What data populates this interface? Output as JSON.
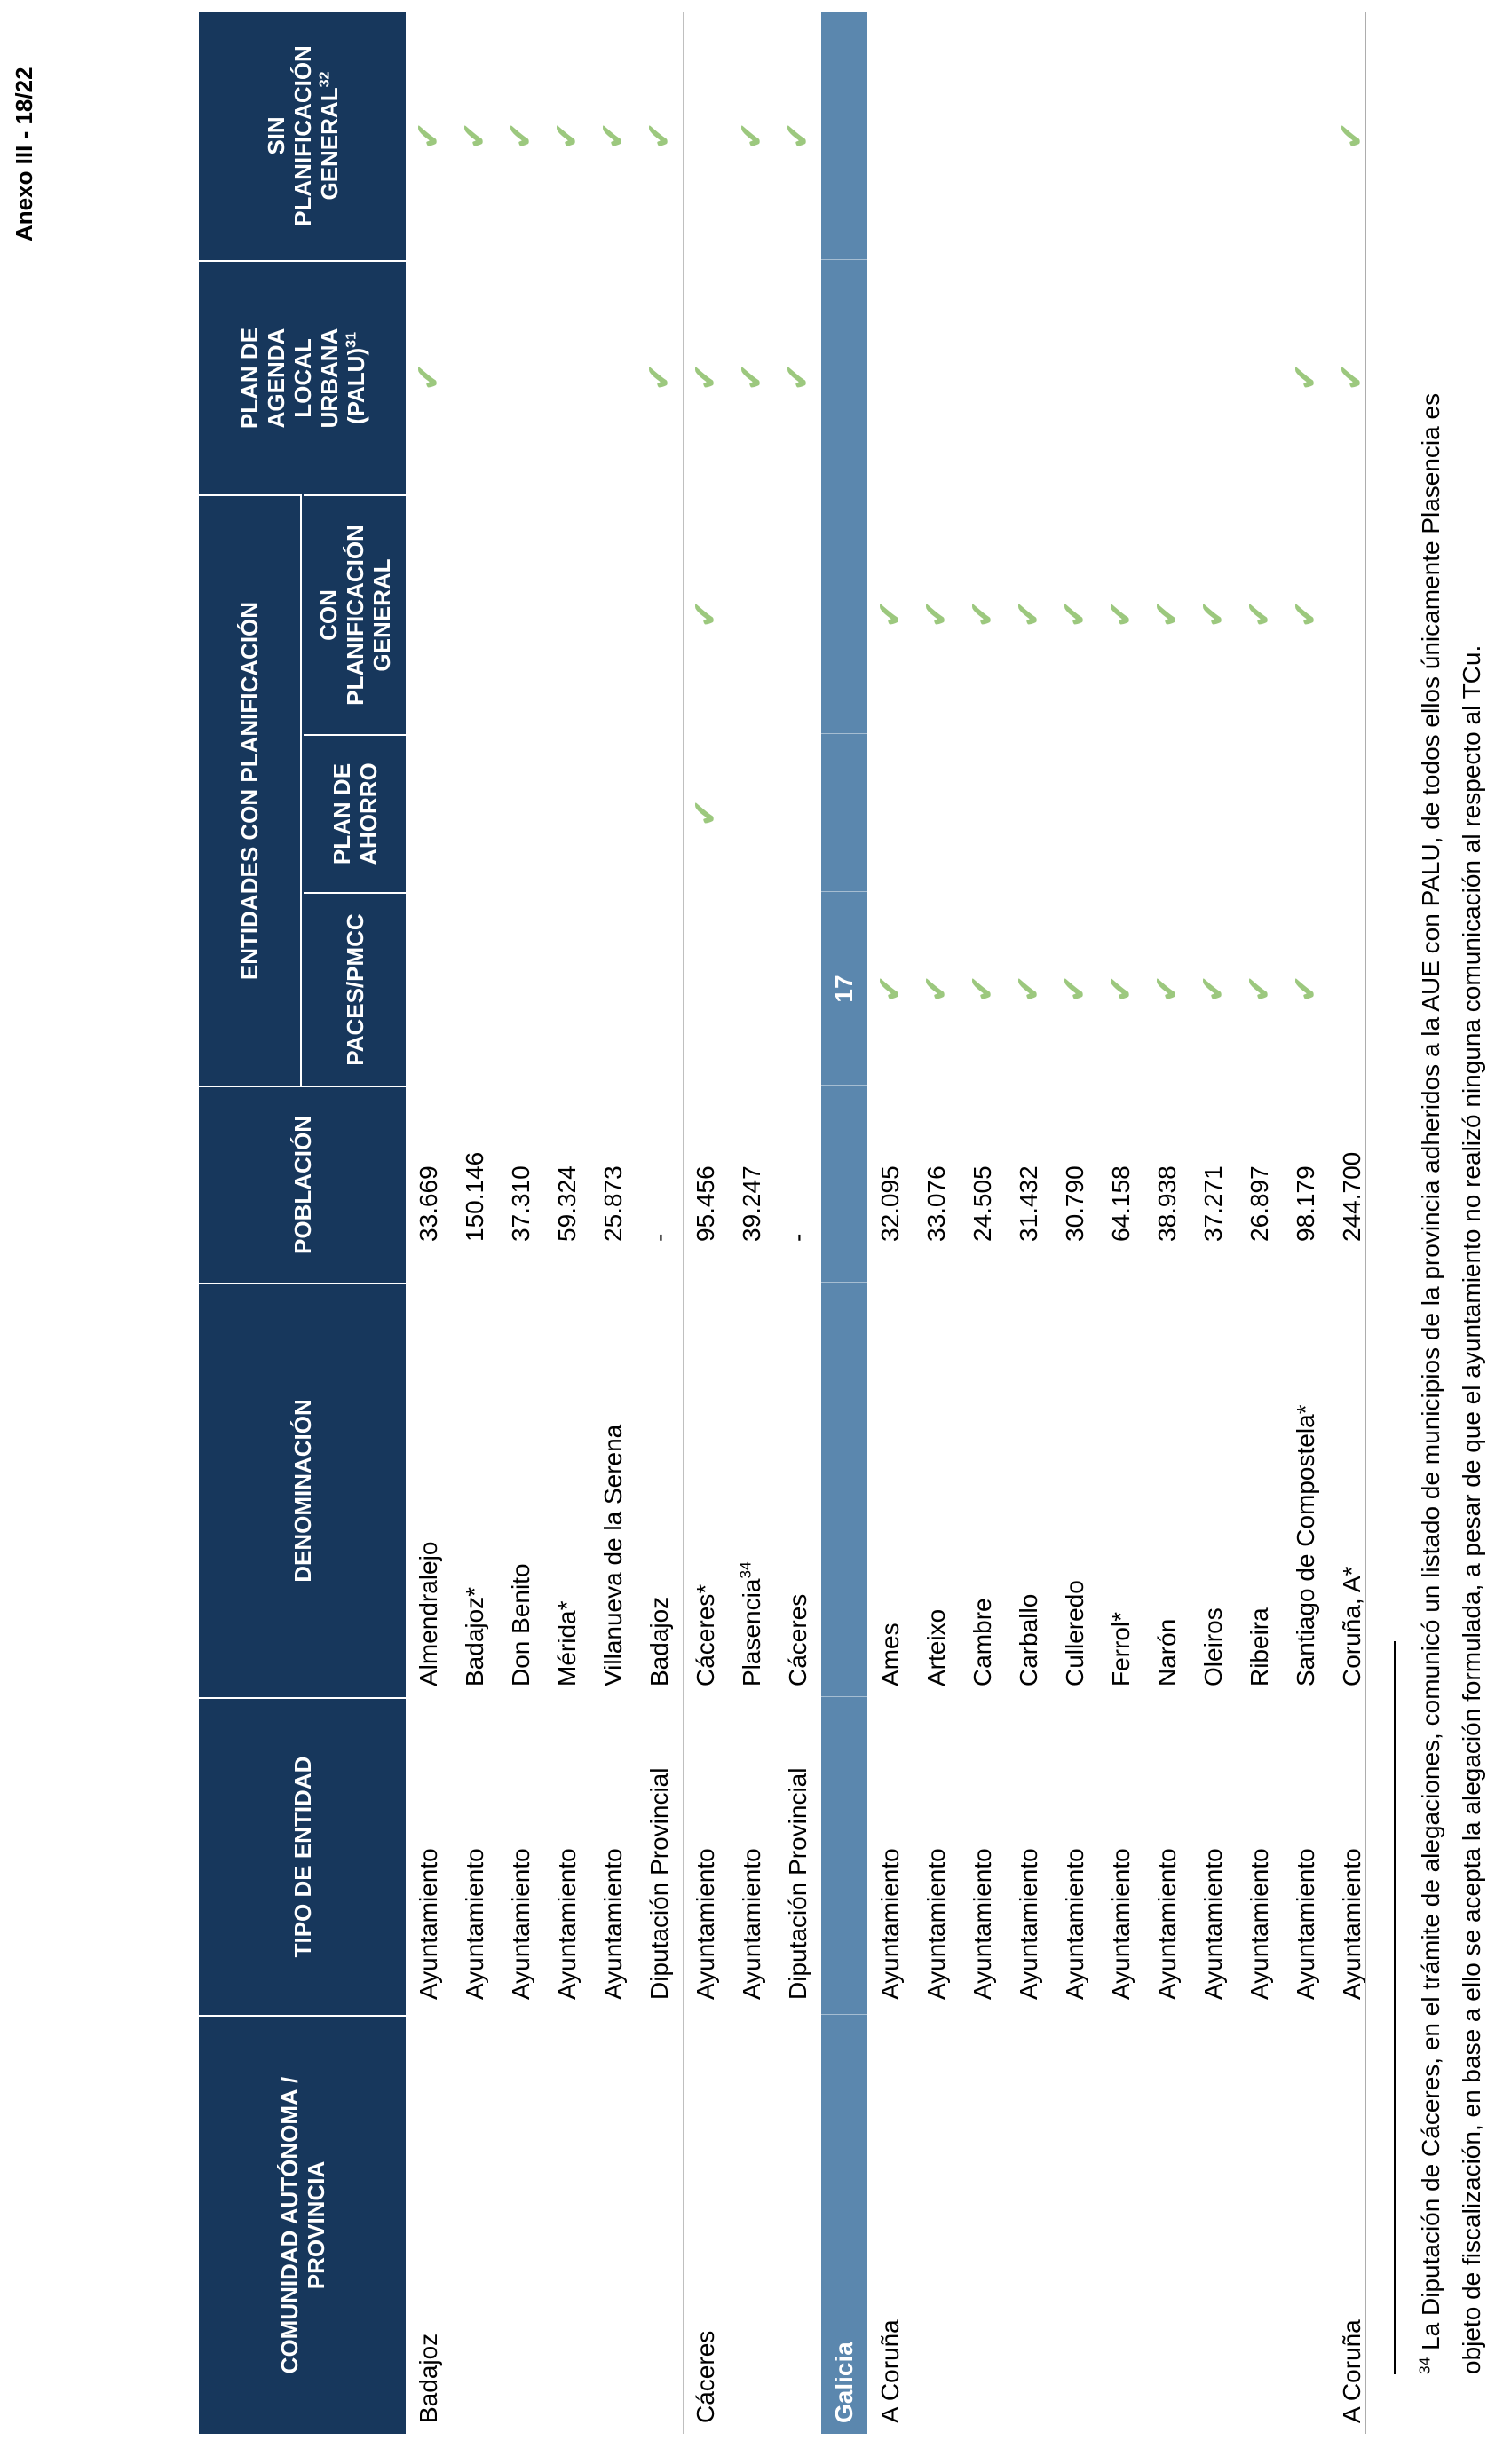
{
  "page": {
    "annex_label": "Anexo III - 18/22"
  },
  "header": {
    "comunidad_line1": "COMUNIDAD AUTÓNOMA /",
    "comunidad_line2": "PROVINCIA",
    "tipo": "TIPO DE ENTIDAD",
    "denominacion": "DENOMINACIÓN",
    "poblacion": "POBLACIÓN",
    "entidades_group": "ENTIDADES CON PLANIFICACIÓN",
    "paces": "PACES/PMCC",
    "ahorro_line1": "PLAN DE",
    "ahorro_line2": "AHORRO",
    "conplan_line1": "CON",
    "conplan_line2": "PLANIFICACIÓN",
    "conplan_line3": "GENERAL",
    "palu_line1": "PLAN DE",
    "palu_line2": "AGENDA",
    "palu_line3": "LOCAL",
    "palu_line4": "URBANA",
    "palu_line5": "(PALU)",
    "palu_sup": "31",
    "sin_line1": "SIN",
    "sin_line2": "PLANIFICACIÓN",
    "sin_line3": "GENERAL",
    "sin_sup": "32"
  },
  "galicia_band": {
    "label": "Galicia",
    "paces": "17"
  },
  "rows": [
    {
      "provincia": "Badajoz",
      "tipo": "Ayuntamiento",
      "denominacion": "Almendralejo",
      "den_sup": "",
      "poblacion": "33.669",
      "paces": "",
      "ahorro": "",
      "conplan": "",
      "palu": "✔",
      "sin": "✔"
    },
    {
      "provincia": "",
      "tipo": "Ayuntamiento",
      "denominacion": "Badajoz*",
      "den_sup": "",
      "poblacion": "150.146",
      "paces": "",
      "ahorro": "",
      "conplan": "",
      "palu": "",
      "sin": "✔"
    },
    {
      "provincia": "",
      "tipo": "Ayuntamiento",
      "denominacion": "Don Benito",
      "den_sup": "",
      "poblacion": "37.310",
      "paces": "",
      "ahorro": "",
      "conplan": "",
      "palu": "",
      "sin": "✔"
    },
    {
      "provincia": "",
      "tipo": "Ayuntamiento",
      "denominacion": "Mérida*",
      "den_sup": "",
      "poblacion": "59.324",
      "paces": "",
      "ahorro": "",
      "conplan": "",
      "palu": "",
      "sin": "✔"
    },
    {
      "provincia": "",
      "tipo": "Ayuntamiento",
      "denominacion": "Villanueva de la Serena",
      "den_sup": "",
      "poblacion": "25.873",
      "paces": "",
      "ahorro": "",
      "conplan": "",
      "palu": "",
      "sin": "✔"
    },
    {
      "provincia": "",
      "tipo": "Diputación Provincial",
      "denominacion": "Badajoz",
      "den_sup": "",
      "poblacion": "-",
      "paces": "",
      "ahorro": "",
      "conplan": "",
      "palu": "✔",
      "sin": "✔"
    },
    {
      "provincia": "Cáceres",
      "tipo": "Ayuntamiento",
      "denominacion": "Cáceres*",
      "den_sup": "",
      "poblacion": "95.456",
      "paces": "",
      "ahorro": "✔",
      "conplan": "✔",
      "palu": "✔",
      "sin": ""
    },
    {
      "provincia": "",
      "tipo": "Ayuntamiento",
      "denominacion": "Plasencia",
      "den_sup": "34",
      "poblacion": "39.247",
      "paces": "",
      "ahorro": "",
      "conplan": "",
      "palu": "✔",
      "sin": "✔"
    },
    {
      "provincia": "",
      "tipo": "Diputación Provincial",
      "denominacion": "Cáceres",
      "den_sup": "",
      "poblacion": "-",
      "paces": "",
      "ahorro": "",
      "conplan": "",
      "palu": "✔",
      "sin": "✔"
    },
    {
      "provincia": "A Coruña",
      "tipo": "Ayuntamiento",
      "denominacion": "Ames",
      "den_sup": "",
      "poblacion": "32.095",
      "paces": "✔",
      "ahorro": "",
      "conplan": "✔",
      "palu": "",
      "sin": ""
    },
    {
      "provincia": "",
      "tipo": "Ayuntamiento",
      "denominacion": "Arteixo",
      "den_sup": "",
      "poblacion": "33.076",
      "paces": "✔",
      "ahorro": "",
      "conplan": "✔",
      "palu": "",
      "sin": ""
    },
    {
      "provincia": "",
      "tipo": "Ayuntamiento",
      "denominacion": "Cambre",
      "den_sup": "",
      "poblacion": "24.505",
      "paces": "✔",
      "ahorro": "",
      "conplan": "✔",
      "palu": "",
      "sin": ""
    },
    {
      "provincia": "",
      "tipo": "Ayuntamiento",
      "denominacion": "Carballo",
      "den_sup": "",
      "poblacion": "31.432",
      "paces": "✔",
      "ahorro": "",
      "conplan": "✔",
      "palu": "",
      "sin": ""
    },
    {
      "provincia": "",
      "tipo": "Ayuntamiento",
      "denominacion": "Culleredo",
      "den_sup": "",
      "poblacion": "30.790",
      "paces": "✔",
      "ahorro": "",
      "conplan": "✔",
      "palu": "",
      "sin": ""
    },
    {
      "provincia": "",
      "tipo": "Ayuntamiento",
      "denominacion": "Ferrol*",
      "den_sup": "",
      "poblacion": "64.158",
      "paces": "✔",
      "ahorro": "",
      "conplan": "✔",
      "palu": "",
      "sin": ""
    },
    {
      "provincia": "",
      "tipo": "Ayuntamiento",
      "denominacion": "Narón",
      "den_sup": "",
      "poblacion": "38.938",
      "paces": "✔",
      "ahorro": "",
      "conplan": "✔",
      "palu": "",
      "sin": ""
    },
    {
      "provincia": "",
      "tipo": "Ayuntamiento",
      "denominacion": "Oleiros",
      "den_sup": "",
      "poblacion": "37.271",
      "paces": "✔",
      "ahorro": "",
      "conplan": "✔",
      "palu": "",
      "sin": ""
    },
    {
      "provincia": "",
      "tipo": "Ayuntamiento",
      "denominacion": "Ribeira",
      "den_sup": "",
      "poblacion": "26.897",
      "paces": "✔",
      "ahorro": "",
      "conplan": "✔",
      "palu": "",
      "sin": ""
    },
    {
      "provincia": "",
      "tipo": "Ayuntamiento",
      "denominacion": "Santiago de Compostela*",
      "den_sup": "",
      "poblacion": "98.179",
      "paces": "✔",
      "ahorro": "",
      "conplan": "✔",
      "palu": "✔",
      "sin": ""
    },
    {
      "provincia": "A Coruña",
      "tipo": "Ayuntamiento",
      "denominacion": "Coruña, A*",
      "den_sup": "",
      "poblacion": "244.700",
      "paces": "",
      "ahorro": "",
      "conplan": "",
      "palu": "✔",
      "sin": "✔"
    }
  ],
  "footnote": {
    "sup": "34",
    "line1": " La Diputación de Cáceres, en el trámite de alegaciones, comunicó un listado de municipios de la provincia adheridos a la AUE con PALU, de todos ellos únicamente Plasencia es",
    "line2": "objeto de fiscalización, en base a ello se acepta la alegación formulada, a pesar de que el ayuntamiento no realizó ninguna comunicación al respecto al TCu."
  },
  "colors": {
    "header_navy": "#17375C",
    "galicia_band_blue": "#5B87AE",
    "check_green": "#9CC87E",
    "grid_gray": "#BFBFBF"
  }
}
